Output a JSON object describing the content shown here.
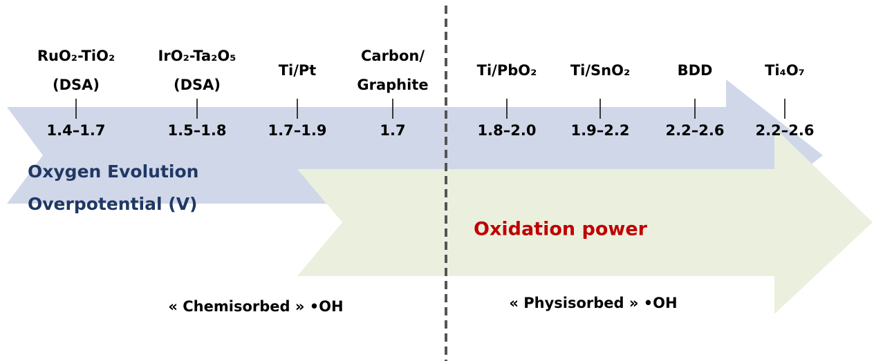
{
  "electrodes": [
    {
      "label": [
        "RuO₂-TiO₂",
        "(DSA)"
      ],
      "range": "1.4–1.7"
    },
    {
      "label": [
        "IrO₂-Ta₂O₅",
        "(DSA)"
      ],
      "range": "1.5–1.8"
    },
    {
      "label": [
        "Ti/Pt"
      ],
      "range": "1.7–1.9"
    },
    {
      "label": [
        "Carbon/",
        "Graphite"
      ],
      "range": "1.7"
    },
    {
      "label": [
        "Ti/PbO₂"
      ],
      "range": "1.8–2.0"
    },
    {
      "label": [
        "Ti/SnO₂"
      ],
      "range": "1.9–2.2"
    },
    {
      "label": [
        "BDD"
      ],
      "range": "2.2–2.6"
    },
    {
      "label": [
        "Ti₄O₇"
      ],
      "range": "2.2–2.6"
    }
  ],
  "oxygen_arrow": {
    "label": [
      "Oxygen Evolution",
      "Overpotential (V)"
    ]
  },
  "oxidation_arrow": {
    "label": "Oxidation power"
  },
  "regions": [
    "« Chemisorbed » •OH",
    "« Physisorbed » •OH"
  ]
}
